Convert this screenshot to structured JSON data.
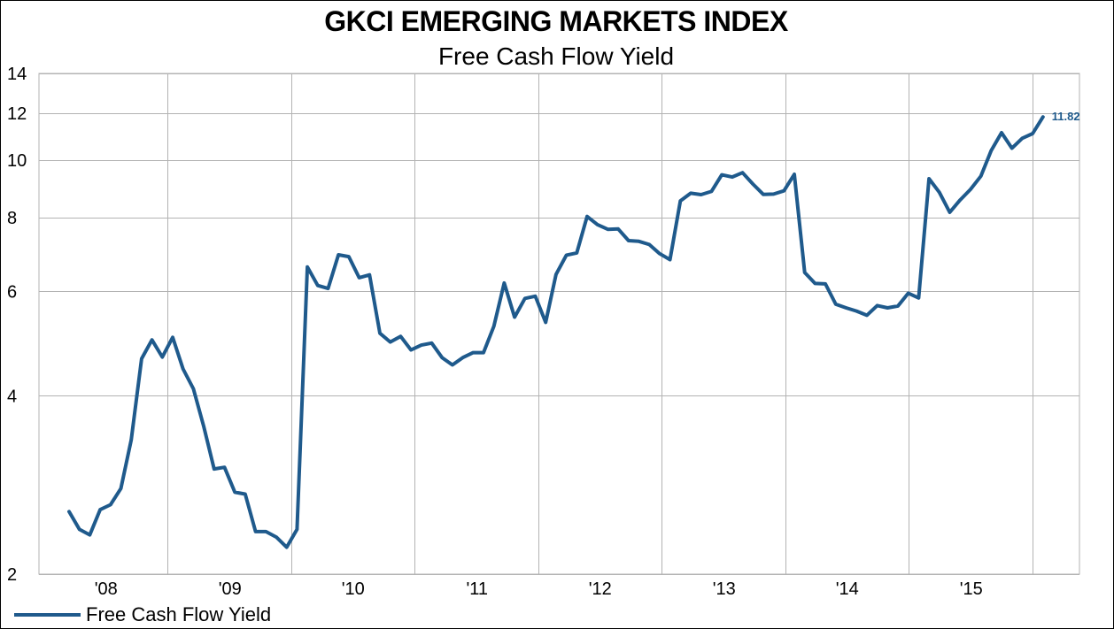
{
  "chart_data": {
    "type": "line",
    "title": "GKCI EMERGING MARKETS INDEX",
    "subtitle": "Free Cash Flow Yield",
    "xlabel": "",
    "ylabel": "",
    "yscale": "log",
    "ylim": [
      2,
      14
    ],
    "yticks": [
      2,
      4,
      6,
      8,
      10,
      12,
      14
    ],
    "xtick_labels": [
      "'08",
      "'09",
      "'10",
      "'11",
      "'12",
      "'13",
      "'14",
      "'15"
    ],
    "grid": true,
    "legend_position": "bottom-left",
    "end_label": "11.82",
    "series": [
      {
        "name": "Free Cash Flow Yield",
        "color": "#1f5a8c",
        "values": [
          2.55,
          2.38,
          2.33,
          2.57,
          2.62,
          2.79,
          3.37,
          4.62,
          4.97,
          4.65,
          5.02,
          4.44,
          4.11,
          3.55,
          3.01,
          3.03,
          2.75,
          2.73,
          2.36,
          2.36,
          2.31,
          2.22,
          2.38,
          6.6,
          6.14,
          6.07,
          6.92,
          6.87,
          6.33,
          6.4,
          5.1,
          4.93,
          5.04,
          4.78,
          4.87,
          4.91,
          4.64,
          4.51,
          4.64,
          4.73,
          4.73,
          5.24,
          6.2,
          5.43,
          5.84,
          5.89,
          5.32,
          6.41,
          6.91,
          6.97,
          8.03,
          7.78,
          7.64,
          7.65,
          7.31,
          7.29,
          7.2,
          6.95,
          6.79,
          8.53,
          8.79,
          8.74,
          8.85,
          9.44,
          9.36,
          9.52,
          9.11,
          8.75,
          8.76,
          8.87,
          9.46,
          6.46,
          6.19,
          6.18,
          5.71,
          5.63,
          5.56,
          5.47,
          5.68,
          5.63,
          5.67,
          5.96,
          5.85,
          9.3,
          8.82,
          8.16,
          8.56,
          8.92,
          9.39,
          10.37,
          11.12,
          10.47,
          10.88,
          11.08,
          11.82
        ]
      }
    ]
  }
}
